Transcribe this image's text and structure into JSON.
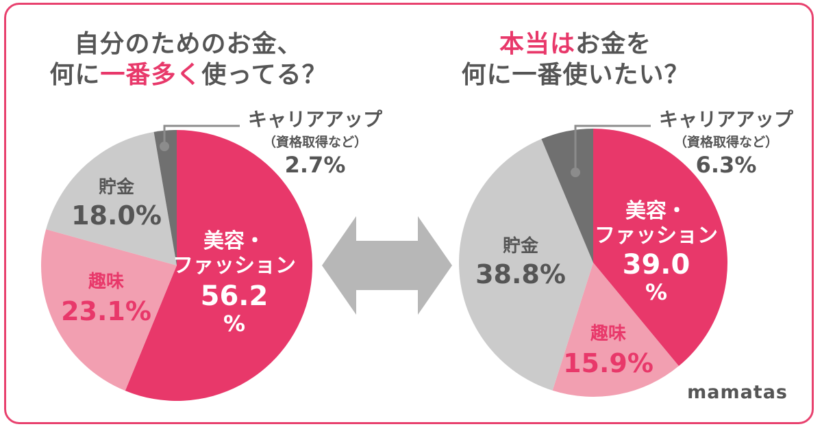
{
  "titles": {
    "left": {
      "line1": "自分のためのお金、",
      "line2_pre": "何に",
      "line2_hl": "一番多く",
      "line2_post": "使ってる？"
    },
    "right": {
      "line1_hl": "本当は",
      "line1_post": "お金を",
      "line2": "何に一番使いたい？"
    }
  },
  "brand": "mamatas",
  "colors": {
    "fashion": "#e8386a",
    "hobby": "#f29fb1",
    "savings": "#cbcbcb",
    "career": "#707070",
    "text_dark": "#555555",
    "text_light": "#ffffff",
    "accent": "#e8386a",
    "arrow": "#b7b7b7",
    "frame": "#e8416e"
  },
  "chart_data": [
    {
      "type": "pie",
      "title": "自分のためのお金、何に一番多く使ってる？",
      "slices": [
        {
          "label": "美容・ファッション",
          "value": 56.2,
          "value_text": [
            "56.2",
            "%"
          ]
        },
        {
          "label": "趣味",
          "value": 23.1,
          "value_text": [
            "23.1%"
          ]
        },
        {
          "label": "貯金",
          "value": 18.0,
          "value_text": [
            "18.0%"
          ]
        },
        {
          "label": "キャリアアップ",
          "sublabel": "（資格取得など）",
          "value": 2.7,
          "value_text": [
            "2.7%"
          ]
        }
      ]
    },
    {
      "type": "pie",
      "title": "本当はお金を何に一番使いたい？",
      "slices": [
        {
          "label": "美容・ファッション",
          "value": 39.0,
          "value_text": [
            "39.0",
            "%"
          ]
        },
        {
          "label": "趣味",
          "value": 15.9,
          "value_text": [
            "15.9%"
          ]
        },
        {
          "label": "貯金",
          "value": 38.8,
          "value_text": [
            "38.8%"
          ]
        },
        {
          "label": "キャリアアップ",
          "sublabel": "（資格取得など）",
          "value": 6.3,
          "value_text": [
            "6.3%"
          ]
        }
      ]
    }
  ]
}
